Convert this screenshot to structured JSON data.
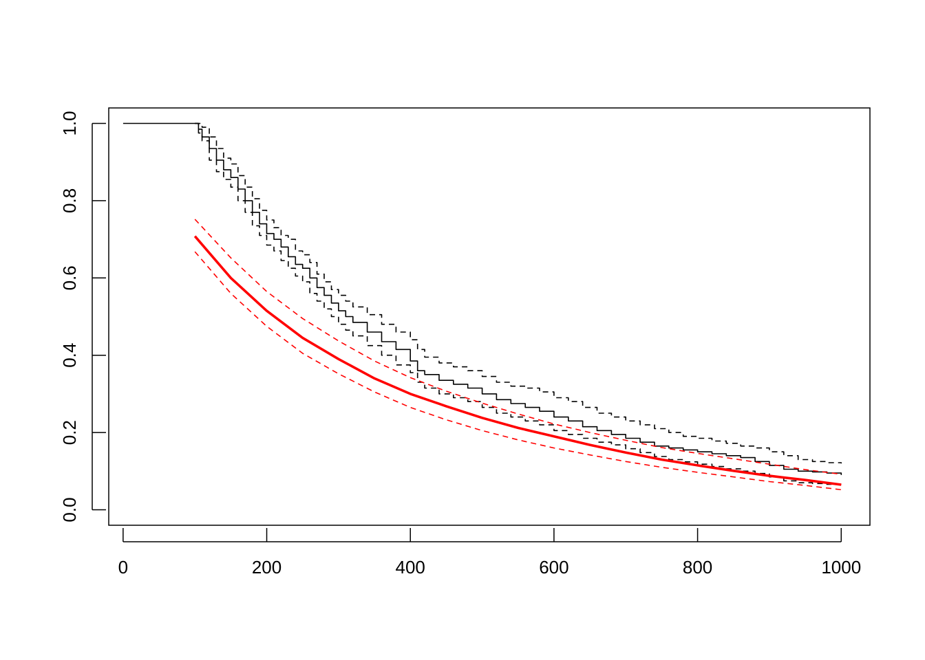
{
  "chart_data": {
    "type": "line",
    "title": "",
    "xlabel": "",
    "ylabel": "",
    "xlim": [
      -20,
      1040
    ],
    "ylim": [
      -0.04,
      1.04
    ],
    "x_ticks": [
      0,
      200,
      400,
      600,
      800,
      1000
    ],
    "y_ticks": [
      0.0,
      0.2,
      0.4,
      0.6,
      0.8,
      1.0
    ],
    "x_tick_labels": [
      "0",
      "200",
      "400",
      "600",
      "800",
      "1000"
    ],
    "y_tick_labels": [
      "0.0",
      "0.2",
      "0.4",
      "0.6",
      "0.8",
      "1.0"
    ],
    "grid": false,
    "legend": "none",
    "series": [
      {
        "style": "step-solid",
        "color": "#000000",
        "x": [
          0,
          100,
          105,
          110,
          120,
          130,
          140,
          150,
          160,
          170,
          180,
          190,
          200,
          210,
          220,
          230,
          240,
          250,
          260,
          270,
          280,
          290,
          300,
          310,
          320,
          340,
          360,
          380,
          400,
          410,
          420,
          440,
          460,
          480,
          500,
          520,
          540,
          560,
          580,
          600,
          620,
          640,
          660,
          680,
          700,
          720,
          740,
          760,
          780,
          800,
          820,
          840,
          860,
          880,
          900,
          920,
          940,
          960,
          980,
          1000
        ],
        "y": [
          1.0,
          1.0,
          0.985,
          0.965,
          0.935,
          0.905,
          0.88,
          0.86,
          0.83,
          0.8,
          0.77,
          0.74,
          0.715,
          0.7,
          0.68,
          0.655,
          0.635,
          0.625,
          0.6,
          0.575,
          0.555,
          0.535,
          0.515,
          0.5,
          0.485,
          0.46,
          0.435,
          0.415,
          0.385,
          0.36,
          0.35,
          0.335,
          0.325,
          0.315,
          0.3,
          0.285,
          0.275,
          0.265,
          0.255,
          0.24,
          0.23,
          0.215,
          0.205,
          0.195,
          0.185,
          0.175,
          0.165,
          0.16,
          0.155,
          0.15,
          0.145,
          0.14,
          0.135,
          0.125,
          0.115,
          0.105,
          0.1,
          0.098,
          0.095,
          0.09
        ]
      },
      {
        "style": "step-dashed",
        "color": "#000000",
        "x": [
          100,
          105,
          110,
          120,
          130,
          140,
          150,
          160,
          170,
          180,
          190,
          200,
          210,
          220,
          230,
          240,
          250,
          260,
          270,
          280,
          290,
          300,
          310,
          320,
          340,
          360,
          380,
          400,
          410,
          420,
          440,
          460,
          480,
          500,
          520,
          540,
          560,
          580,
          600,
          620,
          640,
          660,
          680,
          700,
          720,
          740,
          760,
          780,
          800,
          820,
          840,
          860,
          880,
          900,
          920,
          940,
          960,
          980,
          1000
        ],
        "y": [
          1.0,
          1.0,
          0.99,
          0.965,
          0.935,
          0.91,
          0.895,
          0.865,
          0.835,
          0.805,
          0.775,
          0.75,
          0.73,
          0.71,
          0.7,
          0.67,
          0.66,
          0.64,
          0.61,
          0.59,
          0.57,
          0.555,
          0.54,
          0.525,
          0.505,
          0.48,
          0.46,
          0.44,
          0.415,
          0.395,
          0.38,
          0.37,
          0.36,
          0.345,
          0.33,
          0.32,
          0.315,
          0.305,
          0.29,
          0.28,
          0.265,
          0.25,
          0.24,
          0.23,
          0.22,
          0.21,
          0.2,
          0.19,
          0.185,
          0.178,
          0.172,
          0.165,
          0.16,
          0.15,
          0.14,
          0.13,
          0.125,
          0.122,
          0.12
        ]
      },
      {
        "style": "step-dashed",
        "color": "#000000",
        "x": [
          100,
          105,
          110,
          120,
          130,
          140,
          150,
          160,
          170,
          180,
          190,
          200,
          210,
          220,
          230,
          240,
          250,
          260,
          270,
          280,
          290,
          300,
          310,
          320,
          340,
          360,
          380,
          400,
          410,
          420,
          440,
          460,
          480,
          500,
          520,
          540,
          560,
          580,
          600,
          620,
          640,
          660,
          680,
          700,
          720,
          740,
          760,
          780,
          800,
          820,
          840,
          860,
          880,
          900,
          920,
          940,
          960,
          980,
          1000
        ],
        "y": [
          1.0,
          0.975,
          0.955,
          0.905,
          0.875,
          0.855,
          0.835,
          0.8,
          0.77,
          0.735,
          0.71,
          0.685,
          0.67,
          0.645,
          0.625,
          0.605,
          0.59,
          0.56,
          0.54,
          0.52,
          0.5,
          0.48,
          0.465,
          0.45,
          0.425,
          0.4,
          0.375,
          0.355,
          0.33,
          0.315,
          0.3,
          0.29,
          0.28,
          0.265,
          0.25,
          0.24,
          0.23,
          0.22,
          0.205,
          0.195,
          0.185,
          0.175,
          0.168,
          0.158,
          0.148,
          0.138,
          0.13,
          0.124,
          0.118,
          0.112,
          0.106,
          0.1,
          0.094,
          0.085,
          0.075,
          0.07,
          0.068,
          0.066,
          0.065
        ]
      },
      {
        "style": "solid-thick",
        "color": "#ff0000",
        "x": [
          100,
          150,
          200,
          250,
          300,
          350,
          400,
          450,
          500,
          550,
          600,
          650,
          700,
          750,
          800,
          850,
          900,
          950,
          1000
        ],
        "y": [
          0.708,
          0.6,
          0.515,
          0.445,
          0.39,
          0.34,
          0.3,
          0.268,
          0.238,
          0.212,
          0.19,
          0.168,
          0.148,
          0.13,
          0.115,
          0.101,
          0.088,
          0.077,
          0.065
        ]
      },
      {
        "style": "dashed",
        "color": "#ff0000",
        "x": [
          100,
          150,
          200,
          250,
          300,
          350,
          400,
          450,
          500,
          550,
          600,
          650,
          700,
          750,
          800,
          850,
          900,
          950,
          1000
        ],
        "y": [
          0.752,
          0.652,
          0.565,
          0.495,
          0.437,
          0.385,
          0.342,
          0.307,
          0.276,
          0.248,
          0.222,
          0.2,
          0.18,
          0.161,
          0.146,
          0.132,
          0.118,
          0.104,
          0.092
        ]
      },
      {
        "style": "dashed",
        "color": "#ff0000",
        "x": [
          100,
          150,
          200,
          250,
          300,
          350,
          400,
          450,
          500,
          550,
          600,
          650,
          700,
          750,
          800,
          850,
          900,
          950,
          1000
        ],
        "y": [
          0.668,
          0.56,
          0.475,
          0.405,
          0.352,
          0.305,
          0.265,
          0.233,
          0.205,
          0.181,
          0.16,
          0.142,
          0.125,
          0.11,
          0.097,
          0.085,
          0.073,
          0.063,
          0.052
        ]
      }
    ]
  }
}
